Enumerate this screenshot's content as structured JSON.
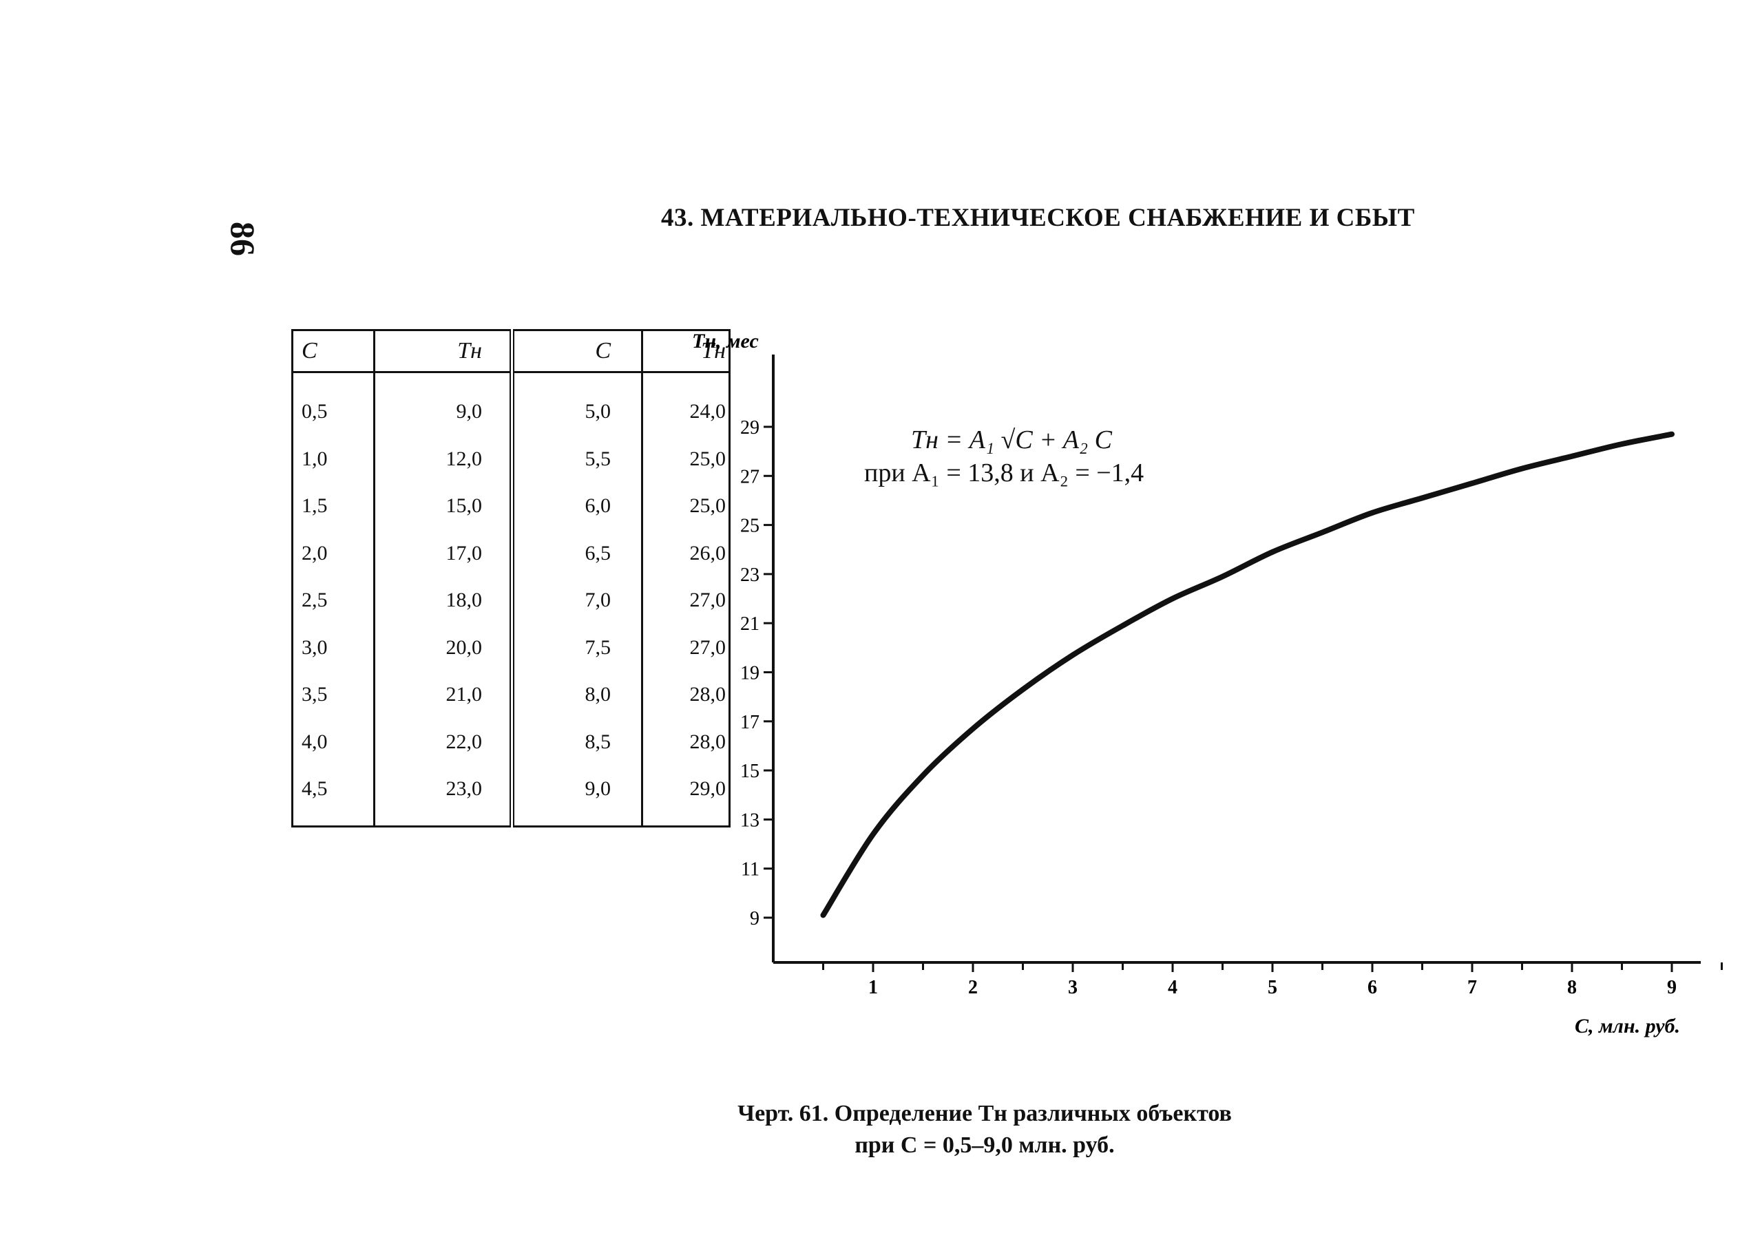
{
  "page_number": "86",
  "section_title": "43. МАТЕРИАЛЬНО-ТЕХНИЧЕСКОЕ СНАБЖЕНИЕ И СБЫТ",
  "table": {
    "headers": [
      "C",
      "Tн",
      "C",
      "Tн"
    ],
    "rows": [
      [
        "0,5",
        "9,0",
        "5,0",
        "24,0"
      ],
      [
        "1,0",
        "12,0",
        "5,5",
        "25,0"
      ],
      [
        "1,5",
        "15,0",
        "6,0",
        "25,0"
      ],
      [
        "2,0",
        "17,0",
        "6,5",
        "26,0"
      ],
      [
        "2,5",
        "18,0",
        "7,0",
        "27,0"
      ],
      [
        "3,0",
        "20,0",
        "7,5",
        "27,0"
      ],
      [
        "3,5",
        "21,0",
        "8,0",
        "28,0"
      ],
      [
        "4,0",
        "22,0",
        "8,5",
        "28,0"
      ],
      [
        "4,5",
        "23,0",
        "9,0",
        "29,0"
      ]
    ]
  },
  "formula": {
    "line1": "Tн = A₁ √C + A₂ C",
    "line2": "при A₁ = 13,8 и A₂ = −1,4"
  },
  "caption": {
    "line1": "Черт. 61. Определение Tн различных объектов",
    "line2": "при C = 0,5–9,0 млн. руб."
  },
  "chart_data": {
    "type": "line",
    "ylabel": "Tн, мес",
    "xlabel": "C, млн. руб.",
    "x_ticks": [
      "1",
      "2",
      "3",
      "4",
      "5",
      "6",
      "7",
      "8",
      "9"
    ],
    "y_ticks": [
      "9",
      "11",
      "13",
      "15",
      "17",
      "19",
      "21",
      "23",
      "25",
      "27",
      "29"
    ],
    "xlim": [
      0,
      9.5
    ],
    "ylim": [
      7,
      32
    ],
    "grid": false,
    "legend": "none",
    "series": [
      {
        "x": [
          0.5,
          1.0,
          1.5,
          2.0,
          2.5,
          3.0,
          3.5,
          4.0,
          4.5,
          5.0,
          5.5,
          6.0,
          6.5,
          7.0,
          7.5,
          8.0,
          8.5,
          9.0
        ],
        "values": [
          9.1,
          12.4,
          14.8,
          16.7,
          18.3,
          19.7,
          20.9,
          22.0,
          22.9,
          23.9,
          24.7,
          25.5,
          26.1,
          26.7,
          27.3,
          27.8,
          28.3,
          28.7
        ]
      }
    ]
  }
}
